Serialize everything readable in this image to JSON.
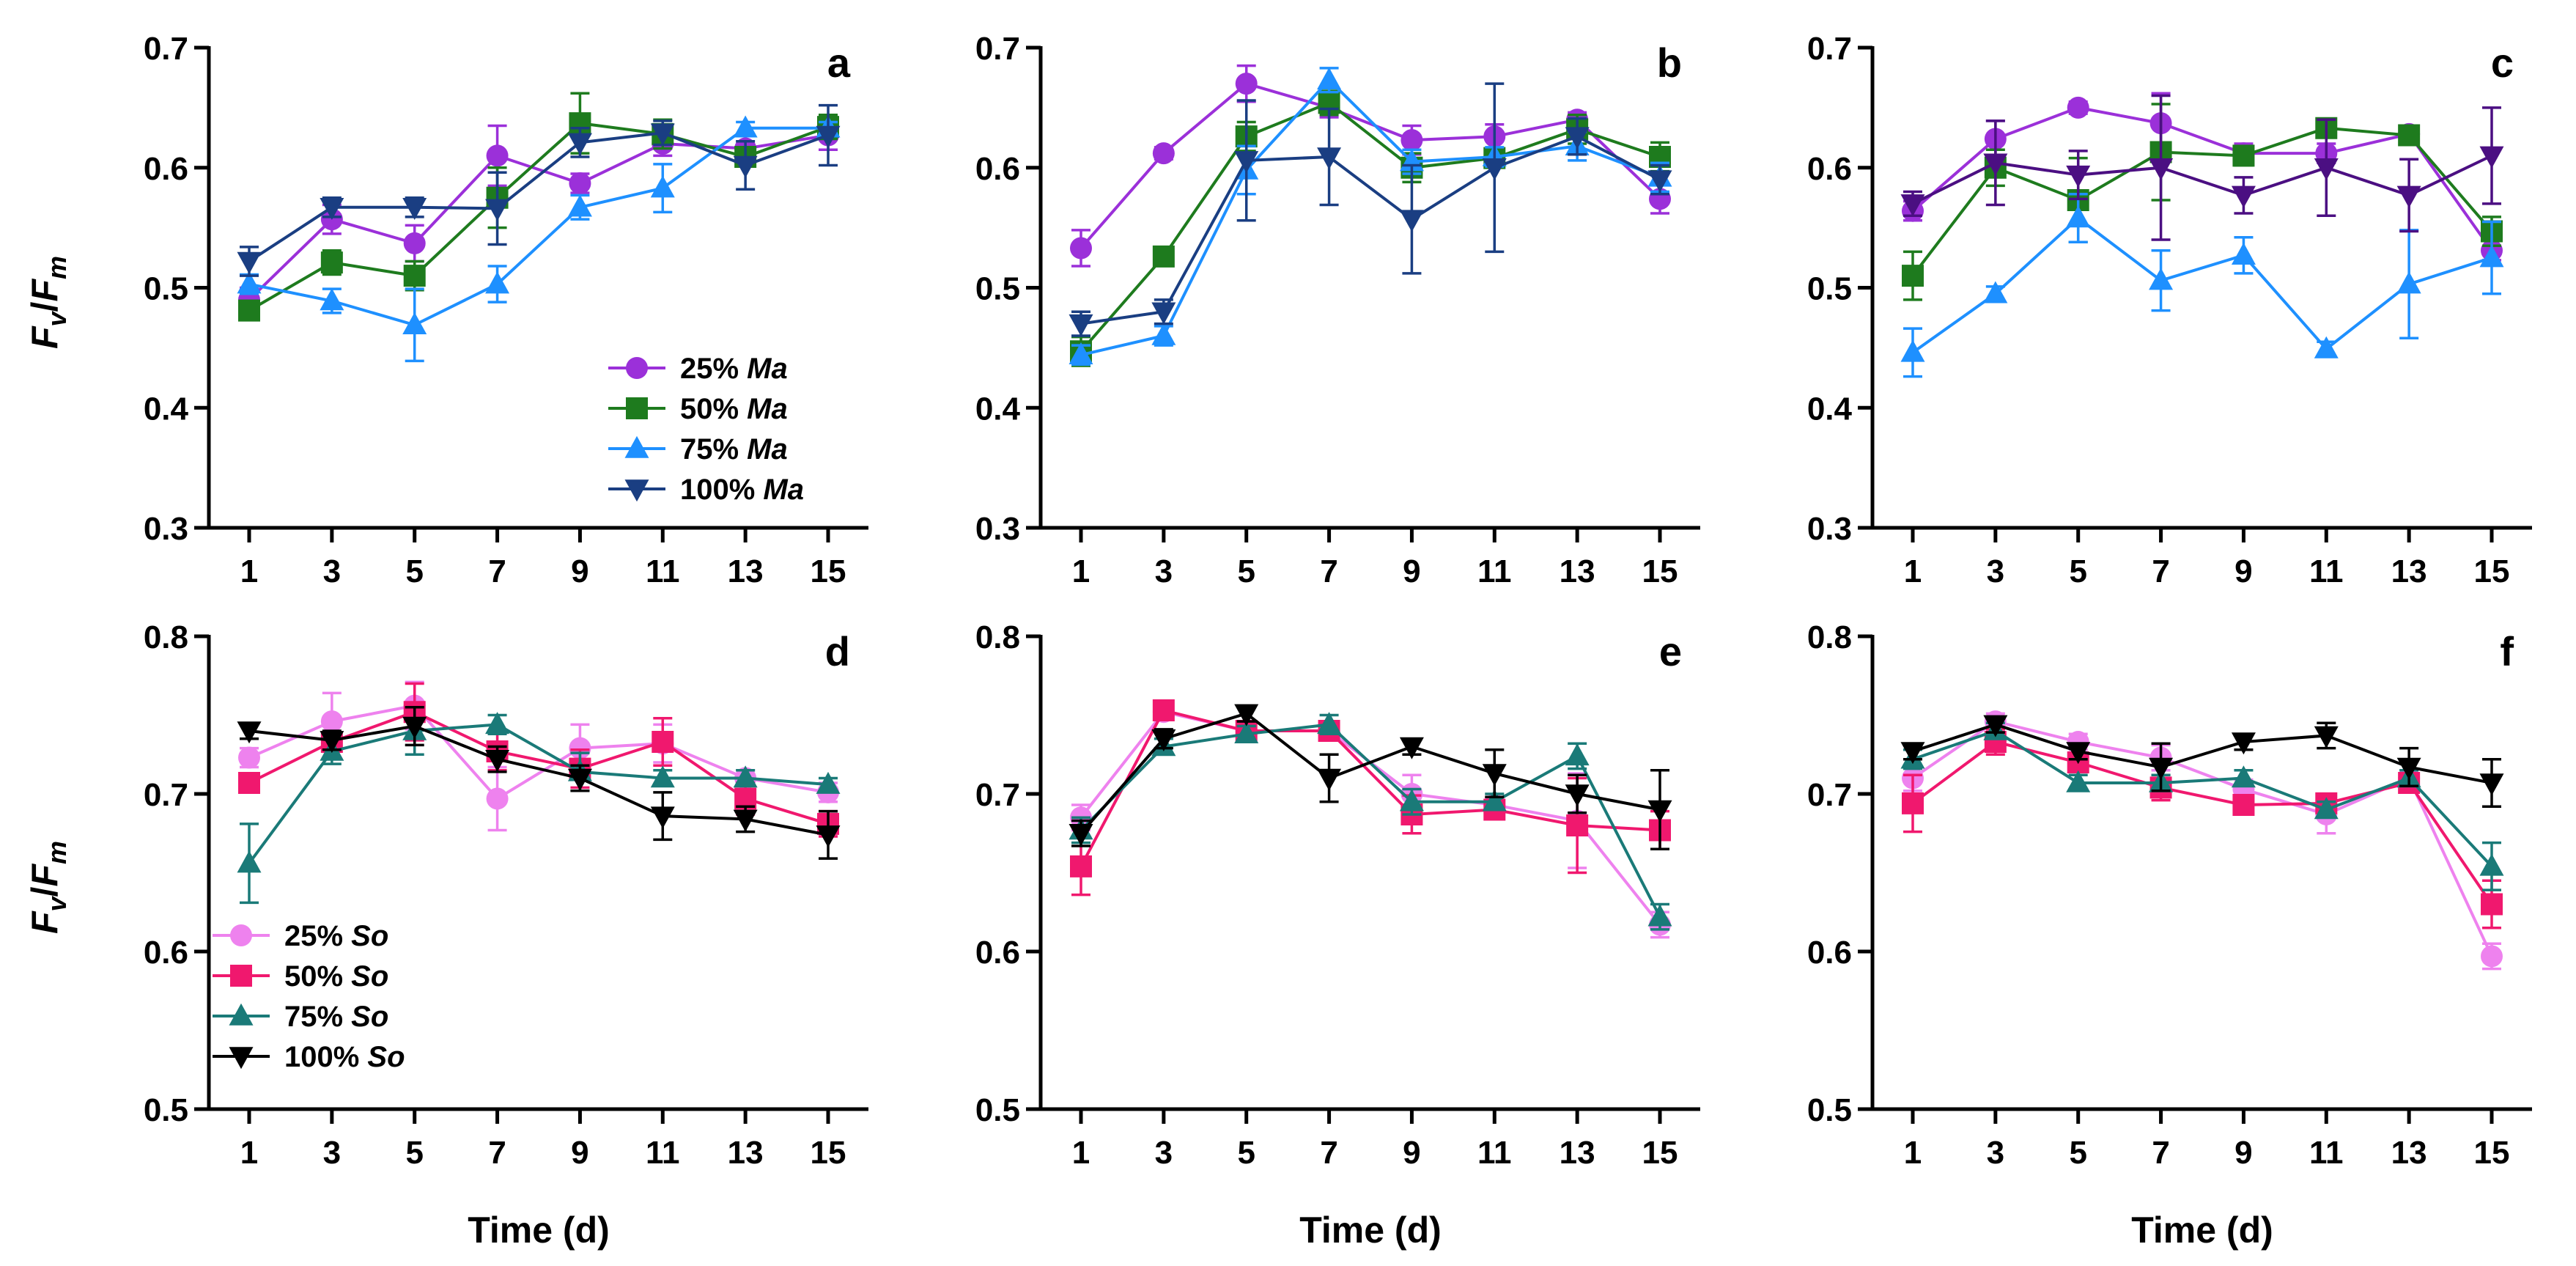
{
  "xlabel": "Time (d)",
  "ylabel": {
    "base": "F",
    "sub1": "v",
    "slash": "/",
    "sub2": "m"
  },
  "legend_top": [
    "25% Ma",
    "50% Ma",
    "75% Ma",
    "100% Ma"
  ],
  "legend_bottom": [
    "25% So",
    "50% So",
    "75% So",
    "100% So"
  ],
  "chart_data": [
    {
      "panel": "a",
      "type": "line",
      "ylim": [
        0.3,
        0.7
      ],
      "yticks": [
        "0.3",
        "0.4",
        "0.5",
        "0.6",
        "0.7"
      ],
      "x": [
        1,
        3,
        5,
        7,
        9,
        11,
        13,
        15
      ],
      "series": [
        {
          "name": "25% Ma",
          "color": "#9b30d9",
          "marker": "circle",
          "values": [
            0.49,
            0.557,
            0.537,
            0.61,
            0.587,
            0.62,
            0.616,
            0.627
          ],
          "errors": [
            0.01,
            0.012,
            0.015,
            0.025,
            0.008,
            0.01,
            0.012,
            0.012
          ]
        },
        {
          "name": "50% Ma",
          "color": "#1e7b1e",
          "marker": "square",
          "values": [
            0.481,
            0.521,
            0.51,
            0.575,
            0.637,
            0.628,
            0.609,
            0.634
          ],
          "errors": [
            0.008,
            0.01,
            0.012,
            0.025,
            0.025,
            0.012,
            0.008,
            0.01
          ]
        },
        {
          "name": "75% Ma",
          "color": "#1e90ff",
          "marker": "triangle",
          "values": [
            0.503,
            0.489,
            0.469,
            0.503,
            0.567,
            0.583,
            0.633,
            0.633
          ],
          "errors": [
            0.008,
            0.01,
            0.03,
            0.015,
            0.01,
            0.02,
            0.005,
            0.005
          ]
        },
        {
          "name": "100% Ma",
          "color": "#1a3e82",
          "marker": "triangle-down",
          "values": [
            0.522,
            0.567,
            0.567,
            0.566,
            0.621,
            0.629,
            0.602,
            0.627
          ],
          "errors": [
            0.012,
            0.008,
            0.008,
            0.03,
            0.012,
            0.01,
            0.02,
            0.025
          ]
        }
      ]
    },
    {
      "panel": "b",
      "type": "line",
      "ylim": [
        0.3,
        0.7
      ],
      "yticks": [
        "0.3",
        "0.4",
        "0.5",
        "0.6",
        "0.7"
      ],
      "x": [
        1,
        3,
        5,
        7,
        9,
        11,
        13,
        15
      ],
      "series": [
        {
          "name": "25% Ma",
          "color": "#9b30d9",
          "marker": "circle",
          "values": [
            0.533,
            0.612,
            0.67,
            0.65,
            0.623,
            0.626,
            0.64,
            0.574
          ],
          "errors": [
            0.015,
            0.005,
            0.015,
            0.008,
            0.012,
            0.01,
            0.006,
            0.012
          ]
        },
        {
          "name": "50% Ma",
          "color": "#1e7b1e",
          "marker": "square",
          "values": [
            0.447,
            0.526,
            0.626,
            0.654,
            0.6,
            0.608,
            0.632,
            0.609
          ],
          "errors": [
            0.012,
            0.006,
            0.012,
            0.01,
            0.012,
            0.008,
            0.012,
            0.012
          ]
        },
        {
          "name": "75% Ma",
          "color": "#1e90ff",
          "marker": "triangle",
          "values": [
            0.444,
            0.46,
            0.598,
            0.673,
            0.605,
            0.609,
            0.618,
            0.592
          ],
          "errors": [
            0.008,
            0.008,
            0.02,
            0.01,
            0.01,
            0.008,
            0.012,
            0.012
          ]
        },
        {
          "name": "100% Ma",
          "color": "#1a3e82",
          "marker": "triangle-down",
          "values": [
            0.47,
            0.48,
            0.606,
            0.609,
            0.557,
            0.6,
            0.626,
            0.59
          ],
          "errors": [
            0.01,
            0.01,
            0.05,
            0.04,
            0.045,
            0.07,
            0.015,
            0.012
          ]
        }
      ]
    },
    {
      "panel": "c",
      "type": "line",
      "ylim": [
        0.3,
        0.7
      ],
      "yticks": [
        "0.3",
        "0.4",
        "0.5",
        "0.6",
        "0.7"
      ],
      "x": [
        1,
        3,
        5,
        7,
        9,
        11,
        13,
        15
      ],
      "series": [
        {
          "name": "25% Ma",
          "color": "#9b30d9",
          "marker": "circle",
          "values": [
            0.564,
            0.624,
            0.65,
            0.637,
            0.612,
            0.612,
            0.628,
            0.531
          ],
          "errors": [
            0.008,
            0.015,
            0.005,
            0.025,
            0.008,
            0.008,
            0.006,
            0.008
          ]
        },
        {
          "name": "50% Ma",
          "color": "#1e7b1e",
          "marker": "square",
          "values": [
            0.51,
            0.6,
            0.573,
            0.613,
            0.61,
            0.633,
            0.627,
            0.547
          ],
          "errors": [
            0.02,
            0.015,
            0.035,
            0.04,
            0.008,
            0.006,
            0.006,
            0.012
          ]
        },
        {
          "name": "75% Ma",
          "color": "#1e90ff",
          "marker": "triangle",
          "values": [
            0.446,
            0.495,
            0.558,
            0.506,
            0.527,
            0.449,
            0.503,
            0.525
          ],
          "errors": [
            0.02,
            0.006,
            0.02,
            0.025,
            0.015,
            0.006,
            0.045,
            0.03
          ]
        },
        {
          "name": "100% Ma",
          "color": "#4b0f82",
          "marker": "triangle-down",
          "values": [
            0.57,
            0.604,
            0.594,
            0.6,
            0.577,
            0.6,
            0.577,
            0.61
          ],
          "errors": [
            0.01,
            0.035,
            0.02,
            0.06,
            0.015,
            0.04,
            0.03,
            0.04
          ]
        }
      ]
    },
    {
      "panel": "d",
      "type": "line",
      "ylim": [
        0.5,
        0.8
      ],
      "yticks": [
        "0.5",
        "0.6",
        "0.7",
        "0.8"
      ],
      "x": [
        1,
        3,
        5,
        7,
        9,
        11,
        13,
        15
      ],
      "series": [
        {
          "name": "25% So",
          "color": "#ee82ee",
          "marker": "circle",
          "values": [
            0.723,
            0.746,
            0.756,
            0.697,
            0.729,
            0.732,
            0.71,
            0.701
          ],
          "errors": [
            0.006,
            0.018,
            0.015,
            0.02,
            0.015,
            0.012,
            0.005,
            0.006
          ]
        },
        {
          "name": "50% So",
          "color": "#f0186e",
          "marker": "square",
          "values": [
            0.707,
            0.733,
            0.752,
            0.727,
            0.716,
            0.733,
            0.697,
            0.681
          ],
          "errors": [
            0.005,
            0.006,
            0.018,
            0.012,
            0.012,
            0.015,
            0.01,
            0.008
          ]
        },
        {
          "name": "75% So",
          "color": "#1a7a78",
          "marker": "triangle",
          "values": [
            0.656,
            0.727,
            0.74,
            0.744,
            0.714,
            0.71,
            0.71,
            0.706
          ],
          "errors": [
            0.025,
            0.008,
            0.015,
            0.006,
            0.012,
            0.005,
            0.005,
            0.004
          ]
        },
        {
          "name": "100% So",
          "color": "#000000",
          "marker": "triangle-down",
          "values": [
            0.74,
            0.734,
            0.743,
            0.722,
            0.71,
            0.686,
            0.684,
            0.674
          ],
          "errors": [
            0.005,
            0.006,
            0.012,
            0.008,
            0.008,
            0.015,
            0.008,
            0.015
          ]
        }
      ]
    },
    {
      "panel": "e",
      "type": "line",
      "ylim": [
        0.5,
        0.8
      ],
      "yticks": [
        "0.5",
        "0.6",
        "0.7",
        "0.8"
      ],
      "x": [
        1,
        3,
        5,
        7,
        9,
        11,
        13,
        15
      ],
      "series": [
        {
          "name": "25% So",
          "color": "#ee82ee",
          "marker": "circle",
          "values": [
            0.685,
            0.752,
            0.74,
            0.74,
            0.7,
            0.693,
            0.683,
            0.617
          ],
          "errors": [
            0.008,
            0.005,
            0.005,
            0.006,
            0.012,
            0.005,
            0.03,
            0.008
          ]
        },
        {
          "name": "50% So",
          "color": "#f0186e",
          "marker": "square",
          "values": [
            0.654,
            0.753,
            0.74,
            0.74,
            0.687,
            0.69,
            0.68,
            0.677
          ],
          "errors": [
            0.018,
            0.005,
            0.005,
            0.005,
            0.012,
            0.006,
            0.03,
            0.012
          ]
        },
        {
          "name": "75% So",
          "color": "#1a7a78",
          "marker": "triangle",
          "values": [
            0.677,
            0.73,
            0.738,
            0.744,
            0.695,
            0.695,
            0.724,
            0.622
          ],
          "errors": [
            0.008,
            0.005,
            0.005,
            0.006,
            0.008,
            0.005,
            0.008,
            0.008
          ]
        },
        {
          "name": "100% So",
          "color": "#000000",
          "marker": "triangle-down",
          "values": [
            0.675,
            0.735,
            0.751,
            0.71,
            0.73,
            0.713,
            0.7,
            0.69
          ],
          "errors": [
            0.008,
            0.006,
            0.005,
            0.015,
            0.005,
            0.015,
            0.012,
            0.025
          ]
        }
      ]
    },
    {
      "panel": "f",
      "type": "line",
      "ylim": [
        0.5,
        0.8
      ],
      "yticks": [
        "0.5",
        "0.6",
        "0.7",
        "0.8"
      ],
      "x": [
        1,
        3,
        5,
        7,
        9,
        11,
        13,
        15
      ],
      "series": [
        {
          "name": "25% So",
          "color": "#ee82ee",
          "marker": "circle",
          "values": [
            0.71,
            0.746,
            0.733,
            0.723,
            0.703,
            0.687,
            0.71,
            0.597
          ],
          "errors": [
            0.008,
            0.005,
            0.005,
            0.008,
            0.006,
            0.012,
            0.005,
            0.008
          ]
        },
        {
          "name": "50% So",
          "color": "#f0186e",
          "marker": "square",
          "values": [
            0.694,
            0.733,
            0.72,
            0.704,
            0.693,
            0.694,
            0.707,
            0.63
          ],
          "errors": [
            0.018,
            0.008,
            0.006,
            0.008,
            0.006,
            0.006,
            0.006,
            0.015
          ]
        },
        {
          "name": "75% So",
          "color": "#1a7a78",
          "marker": "triangle",
          "values": [
            0.722,
            0.74,
            0.707,
            0.707,
            0.71,
            0.69,
            0.71,
            0.654
          ],
          "errors": [
            0.006,
            0.005,
            0.005,
            0.005,
            0.005,
            0.005,
            0.005,
            0.015
          ]
        },
        {
          "name": "100% So",
          "color": "#000000",
          "marker": "triangle-down",
          "values": [
            0.727,
            0.744,
            0.727,
            0.717,
            0.733,
            0.737,
            0.717,
            0.707
          ],
          "errors": [
            0.005,
            0.005,
            0.005,
            0.015,
            0.005,
            0.008,
            0.012,
            0.015
          ]
        }
      ]
    }
  ]
}
